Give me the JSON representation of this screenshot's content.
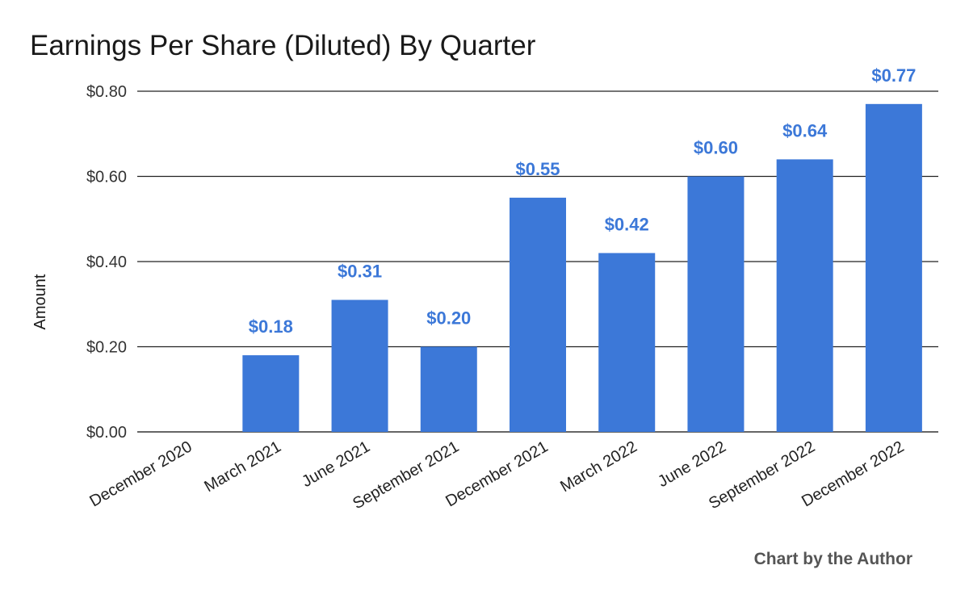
{
  "chart_data": {
    "type": "bar",
    "title": "Earnings Per Share (Diluted) By Quarter",
    "xlabel": "",
    "ylabel": "Amount",
    "categories": [
      "December 2020",
      "March 2021",
      "June 2021",
      "September 2021",
      "December 2021",
      "March 2022",
      "June 2022",
      "September 2022",
      "December 2022"
    ],
    "values": [
      0,
      0.18,
      0.31,
      0.2,
      0.55,
      0.42,
      0.6,
      0.64,
      0.77
    ],
    "data_labels": [
      "",
      "$0.18",
      "$0.31",
      "$0.20",
      "$0.55",
      "$0.42",
      "$0.60",
      "$0.64",
      "$0.77"
    ],
    "ylim": [
      0,
      0.8
    ],
    "y_ticks": [
      0,
      0.2,
      0.4,
      0.6,
      0.8
    ],
    "y_tick_labels": [
      "$0.00",
      "$0.20",
      "$0.40",
      "$0.60",
      "$0.80"
    ],
    "grid": true,
    "legend": "none",
    "bar_color": "#3c78d8",
    "label_color": "#3c78d8"
  },
  "footer": {
    "credit": "Chart by the Author"
  }
}
